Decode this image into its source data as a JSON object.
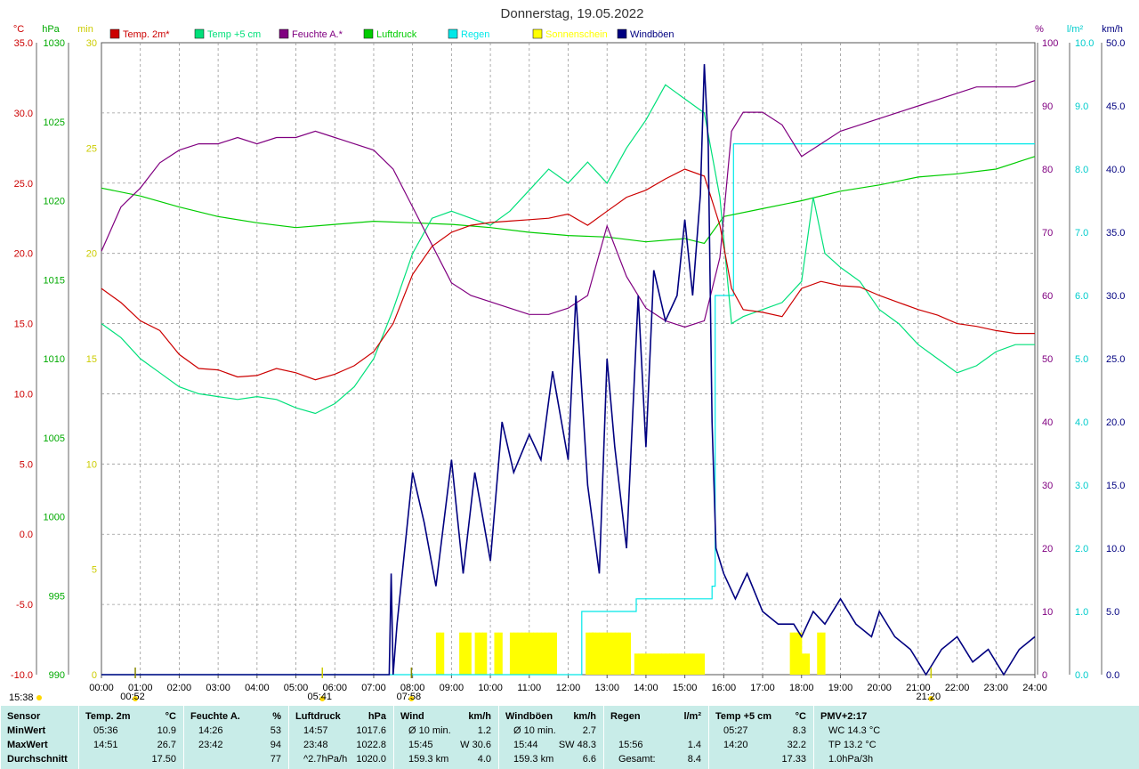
{
  "title": "Donnerstag, 19.05.2022",
  "colors": {
    "temp2m": "#cc0000",
    "temp5cm": "#00e07a",
    "humidity": "#800080",
    "pressure": "#00cc00",
    "rain": "#00e8e8",
    "sunshine": "#ffff00",
    "gusts": "#000080",
    "summary_bg": "#c8ece8"
  },
  "legend": [
    {
      "label": "Temp. 2m*",
      "color": "#cc0000"
    },
    {
      "label": "Temp +5 cm",
      "color": "#00e07a"
    },
    {
      "label": "Feuchte A.*",
      "color": "#800080"
    },
    {
      "label": "Luftdruck",
      "color": "#00cc00"
    },
    {
      "label": "Regen",
      "color": "#00e8e8"
    },
    {
      "label": "Sonnenschein",
      "color": "#ffff00"
    },
    {
      "label": "Windböen",
      "color": "#000080"
    }
  ],
  "axes": {
    "temp": {
      "unit": "°C",
      "ticks": [
        "35.0",
        "30.0",
        "25.0",
        "20.0",
        "15.0",
        "10.0",
        "5.0",
        "0.0",
        "-5.0",
        "-10.0"
      ],
      "color": "#cc0000"
    },
    "pressure": {
      "unit": "hPa",
      "ticks": [
        "1030",
        "1025",
        "1020",
        "1015",
        "1010",
        "1005",
        "1000",
        "995",
        "990"
      ],
      "color": "#00aa00"
    },
    "sun": {
      "unit": "min",
      "ticks": [
        "30",
        "25",
        "20",
        "15",
        "10",
        "5",
        "0"
      ],
      "color": "#cccc00"
    },
    "humidity": {
      "unit": "%",
      "ticks": [
        "100",
        "90",
        "80",
        "70",
        "60",
        "50",
        "40",
        "30",
        "20",
        "10",
        "0"
      ],
      "color": "#800080"
    },
    "rain": {
      "unit": "l/m²",
      "ticks": [
        "10.0",
        "9.0",
        "8.0",
        "7.0",
        "6.0",
        "5.0",
        "4.0",
        "3.0",
        "2.0",
        "1.0",
        "0.0"
      ],
      "color": "#00cccc"
    },
    "wind": {
      "unit": "km/h",
      "ticks": [
        "50.0",
        "45.0",
        "40.0",
        "35.0",
        "30.0",
        "25.0",
        "20.0",
        "15.0",
        "10.0",
        "5.0",
        "0.0"
      ],
      "color": "#000080"
    },
    "x_ticks": [
      "00:00",
      "01:00",
      "02:00",
      "03:00",
      "04:00",
      "05:00",
      "06:00",
      "07:00",
      "08:00",
      "09:00",
      "10:00",
      "11:00",
      "12:00",
      "13:00",
      "14:00",
      "15:00",
      "16:00",
      "17:00",
      "18:00",
      "19:00",
      "20:00",
      "21:00",
      "22:00",
      "23:00",
      "24:00"
    ]
  },
  "markers": {
    "sunrise_label": "05:41",
    "sunset_label": "21:20",
    "moonrise_label": "00:52",
    "moonset_label": "07:58",
    "corner_time": "15:38"
  },
  "chart_data": {
    "type": "line",
    "x_range_hours": [
      0,
      24
    ],
    "grid": true,
    "series": [
      {
        "name": "Temp. 2m*",
        "axis": "temp",
        "x": [
          0,
          0.5,
          1,
          1.5,
          2,
          2.5,
          3,
          3.5,
          4,
          4.5,
          5,
          5.5,
          6,
          6.5,
          7,
          7.5,
          8,
          8.5,
          9,
          9.5,
          10,
          10.5,
          11,
          11.5,
          12,
          12.5,
          13,
          13.5,
          14,
          14.5,
          15,
          15.5,
          15.9,
          16.2,
          16.5,
          17,
          17.5,
          18,
          18.5,
          19,
          19.5,
          20,
          20.5,
          21,
          21.5,
          22,
          22.5,
          23,
          23.5,
          24
        ],
        "y": [
          17.5,
          16.5,
          15.2,
          14.5,
          12.8,
          11.8,
          11.7,
          11.2,
          11.3,
          11.8,
          11.5,
          11.0,
          11.4,
          12.0,
          13.0,
          15.0,
          18.5,
          20.5,
          21.5,
          22.0,
          22.2,
          22.3,
          22.4,
          22.5,
          22.8,
          22.0,
          23.0,
          24.0,
          24.5,
          25.3,
          26.0,
          25.5,
          22.0,
          17.5,
          16.0,
          15.8,
          15.5,
          17.5,
          18.0,
          17.7,
          17.6,
          17.0,
          16.5,
          16.0,
          15.6,
          15.0,
          14.8,
          14.5,
          14.3,
          14.3
        ]
      },
      {
        "name": "Temp +5 cm",
        "axis": "temp",
        "x": [
          0,
          0.5,
          1,
          1.5,
          2,
          2.5,
          3,
          3.5,
          4,
          4.5,
          5,
          5.5,
          6,
          6.5,
          7,
          7.5,
          8,
          8.5,
          9,
          9.5,
          10,
          10.5,
          11,
          11.5,
          12,
          12.5,
          13,
          13.5,
          14,
          14.5,
          15,
          15.5,
          15.9,
          16.2,
          16.5,
          17,
          17.5,
          18,
          18.3,
          18.6,
          19,
          19.5,
          20,
          20.5,
          21,
          21.5,
          22,
          22.5,
          23,
          23.5,
          24
        ],
        "y": [
          15.0,
          14.0,
          12.5,
          11.5,
          10.5,
          10.0,
          9.8,
          9.6,
          9.8,
          9.6,
          9.0,
          8.6,
          9.3,
          10.5,
          12.5,
          16.0,
          20.0,
          22.5,
          23.0,
          22.5,
          22.0,
          23.0,
          24.5,
          26.0,
          25.0,
          26.5,
          25.0,
          27.5,
          29.5,
          32.0,
          31.0,
          30.0,
          24.0,
          15.0,
          15.5,
          16.0,
          16.5,
          18.0,
          24.0,
          20.0,
          19.0,
          18.0,
          16.0,
          15.0,
          13.5,
          12.5,
          11.5,
          12.0,
          13.0,
          13.5,
          13.5
        ]
      },
      {
        "name": "Feuchte A.*",
        "axis": "humidity",
        "x": [
          0,
          0.5,
          1,
          1.5,
          2,
          2.5,
          3,
          3.5,
          4,
          4.5,
          5,
          5.5,
          6,
          6.5,
          7,
          7.5,
          8,
          8.5,
          9,
          9.5,
          10,
          10.5,
          11,
          11.5,
          12,
          12.5,
          13,
          13.5,
          14,
          14.5,
          15,
          15.5,
          15.9,
          16.2,
          16.5,
          17,
          17.5,
          18,
          18.5,
          19,
          19.5,
          20,
          20.5,
          21,
          21.5,
          22,
          22.5,
          23,
          23.5,
          24
        ],
        "y": [
          67,
          74,
          77,
          81,
          83,
          84,
          84,
          85,
          84,
          85,
          85,
          86,
          85,
          84,
          83,
          80,
          74,
          68,
          62,
          60,
          59,
          58,
          57,
          57,
          58,
          60,
          71,
          63,
          58,
          56,
          55,
          56,
          66,
          86,
          89,
          89,
          87,
          82,
          84,
          86,
          87,
          88,
          89,
          90,
          91,
          92,
          93,
          93,
          93,
          94
        ]
      },
      {
        "name": "Luftdruck",
        "axis": "pressure",
        "x": [
          0,
          1,
          2,
          3,
          4,
          5,
          6,
          7,
          8,
          9,
          10,
          11,
          12,
          13,
          14,
          15,
          15.5,
          16,
          17,
          18,
          19,
          20,
          21,
          22,
          23,
          24
        ],
        "y": [
          1020.8,
          1020.3,
          1019.6,
          1019.0,
          1018.6,
          1018.3,
          1018.5,
          1018.7,
          1018.6,
          1018.5,
          1018.3,
          1018.0,
          1017.8,
          1017.7,
          1017.4,
          1017.6,
          1017.3,
          1019.0,
          1019.5,
          1020.0,
          1020.6,
          1021.0,
          1021.5,
          1021.7,
          1022.0,
          1022.8
        ]
      },
      {
        "name": "Regen",
        "axis": "rain",
        "x": [
          0,
          12.35,
          12.35,
          13.75,
          13.75,
          15.7,
          15.7,
          15.78,
          15.78,
          16.25,
          16.25,
          24
        ],
        "y": [
          0,
          0,
          1.0,
          1.0,
          1.2,
          1.2,
          1.4,
          1.4,
          6.0,
          6.0,
          8.4,
          8.4
        ]
      },
      {
        "name": "Windböen",
        "axis": "wind",
        "x": [
          0,
          7.4,
          7.45,
          7.5,
          7.6,
          8.0,
          8.3,
          8.6,
          9.0,
          9.3,
          9.6,
          10.0,
          10.3,
          10.6,
          11.0,
          11.3,
          11.6,
          12.0,
          12.2,
          12.5,
          12.8,
          13.0,
          13.2,
          13.5,
          13.8,
          14.0,
          14.2,
          14.5,
          14.8,
          15.0,
          15.2,
          15.4,
          15.5,
          15.6,
          15.7,
          15.8,
          16.0,
          16.3,
          16.6,
          17.0,
          17.4,
          17.8,
          18.0,
          18.3,
          18.6,
          19.0,
          19.4,
          19.8,
          20.0,
          20.4,
          20.8,
          21.0,
          21.2,
          21.6,
          22.0,
          22.4,
          22.8,
          23.2,
          23.6,
          24
        ],
        "y": [
          0,
          0,
          8.0,
          0,
          4.0,
          16.0,
          12.0,
          7.0,
          17.0,
          8.0,
          16.0,
          9.0,
          20.0,
          16.0,
          19.0,
          17.0,
          24.0,
          17.0,
          30.0,
          15.0,
          8.0,
          25.0,
          18.0,
          10.0,
          30.0,
          18.0,
          32.0,
          28.0,
          30.0,
          36.0,
          30.0,
          38.0,
          48.3,
          42.0,
          20.0,
          10.0,
          8.0,
          6.0,
          8.0,
          5.0,
          4.0,
          4.0,
          3.0,
          5.0,
          4.0,
          6.0,
          4.0,
          3.0,
          5.0,
          3.0,
          2.0,
          1.0,
          0,
          2.0,
          3.0,
          1.0,
          2.0,
          0,
          2.0,
          3.0
        ]
      },
      {
        "name": "Sonnenschein",
        "axis": "sun",
        "type": "bar",
        "x": [
          8.6,
          8.7,
          9.2,
          9.3,
          9.4,
          9.6,
          9.7,
          9.8,
          10.1,
          10.2,
          10.5,
          10.6,
          10.7,
          10.8,
          10.9,
          11.0,
          11.1,
          11.2,
          11.3,
          11.4,
          11.5,
          11.6,
          12.45,
          12.55,
          12.6,
          12.7,
          12.8,
          12.9,
          13.0,
          13.1,
          13.2,
          13.3,
          13.4,
          13.5,
          13.7,
          13.8,
          13.9,
          14.0,
          14.1,
          14.2,
          14.3,
          14.4,
          14.5,
          14.6,
          14.7,
          14.8,
          14.9,
          15.0,
          15.1,
          15.2,
          15.3,
          15.4,
          17.7,
          17.8,
          17.9,
          18.0,
          18.1,
          18.4,
          18.5
        ],
        "y": [
          2,
          2,
          2,
          2,
          2,
          2,
          2,
          2,
          2,
          2,
          2,
          2,
          2,
          2,
          2,
          2,
          2,
          2,
          2,
          2,
          2,
          2,
          2,
          2,
          2,
          2,
          2,
          2,
          2,
          2,
          2,
          2,
          2,
          2,
          1,
          1,
          1,
          1,
          1,
          1,
          1,
          1,
          1,
          1,
          1,
          1,
          1,
          1,
          1,
          1,
          1,
          1,
          2,
          2,
          2,
          1,
          1,
          2,
          2
        ]
      }
    ]
  },
  "summary": {
    "row_labels": [
      "Sensor",
      "MinWert",
      "MaxWert",
      "Durchschnitt"
    ],
    "columns": [
      {
        "header": "Temp. 2m",
        "unit": "°C",
        "rows": [
          [
            "05:36",
            "10.9"
          ],
          [
            "14:51",
            "26.7"
          ],
          [
            "",
            "17.50"
          ]
        ]
      },
      {
        "header": "Feuchte A.",
        "unit": "%",
        "rows": [
          [
            "14:26",
            "53"
          ],
          [
            "23:42",
            "94"
          ],
          [
            "",
            "77"
          ]
        ]
      },
      {
        "header": "Luftdruck",
        "unit": "hPa",
        "rows": [
          [
            "14:57",
            "1017.6"
          ],
          [
            "23:48",
            "1022.8"
          ],
          [
            "^2.7hPa/h",
            "1020.0"
          ]
        ]
      },
      {
        "header": "Wind",
        "unit": "km/h",
        "rows": [
          [
            "Ø 10 min.",
            "1.2"
          ],
          [
            "15:45",
            "W 30.6"
          ],
          [
            "159.3 km",
            "4.0"
          ]
        ]
      },
      {
        "header": "Windböen",
        "unit": "km/h",
        "rows": [
          [
            "Ø 10 min.",
            "2.7"
          ],
          [
            "15:44",
            "SW 48.3"
          ],
          [
            "159.3 km",
            "6.6"
          ]
        ]
      },
      {
        "header": "Regen",
        "unit": "l/m²",
        "rows": [
          [
            "",
            ""
          ],
          [
            "15:56",
            "1.4"
          ],
          [
            "Gesamt:",
            "8.4"
          ]
        ]
      },
      {
        "header": "Temp +5 cm",
        "unit": "°C",
        "rows": [
          [
            "05:27",
            "8.3"
          ],
          [
            "14:20",
            "32.2"
          ],
          [
            "",
            "17.33"
          ]
        ]
      },
      {
        "header": "PMV+2:17",
        "unit": "",
        "rows": [
          [
            "WC 14.3 °C",
            ""
          ],
          [
            "TP 13.2 °C",
            ""
          ],
          [
            "1.0hPa/3h",
            ""
          ]
        ]
      }
    ]
  }
}
